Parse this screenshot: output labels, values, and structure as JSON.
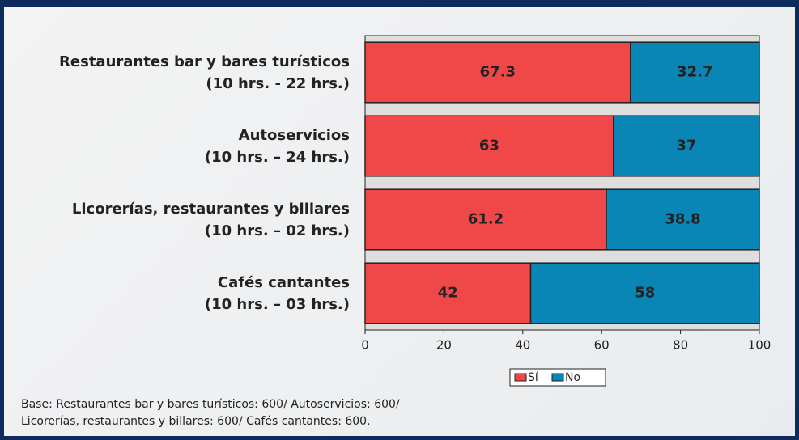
{
  "chart_data": {
    "type": "bar",
    "orientation": "horizontal",
    "stacked": true,
    "categories": [
      "Restaurantes bar y bares turísticos\n(10 hrs. - 22 hrs.)",
      "Autoservicios\n(10 hrs. – 24 hrs.)",
      "Licorerías, restaurantes y billares\n(10 hrs. – 02 hrs.)",
      "Cafés cantantes\n(10 hrs. – 03 hrs.)"
    ],
    "series": [
      {
        "name": "Sí",
        "color": "#f04848",
        "values": [
          67.3,
          63,
          61.2,
          42
        ]
      },
      {
        "name": "No",
        "color": "#0a86b6",
        "values": [
          32.7,
          37,
          38.8,
          58
        ]
      }
    ],
    "xlim": [
      0,
      100
    ],
    "xticks": [
      0,
      20,
      40,
      60,
      80,
      100
    ],
    "legend": "bottom",
    "note": "Base: Restaurantes bar y bares turísticos: 600/ Autoservicios: 600/\nLicorerías, restaurantes y billares: 600/ Cafés cantantes: 600."
  }
}
